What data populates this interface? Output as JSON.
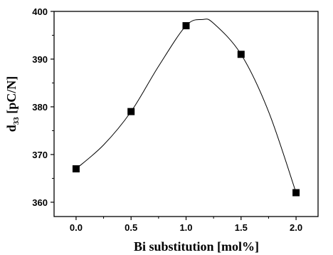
{
  "chart_data": {
    "type": "scatter",
    "title": "",
    "xlabel": "Bi substitution [mol%]",
    "ylabel": {
      "main": "d",
      "subscript": "33",
      "unit": " [pC/N]"
    },
    "xlim": [
      -0.2,
      2.2
    ],
    "ylim": [
      357,
      400
    ],
    "x_ticks": [
      0.0,
      0.5,
      1.0,
      1.5,
      2.0
    ],
    "x_tick_labels": [
      "0.0",
      "0.5",
      "1.0",
      "1.5",
      "2.0"
    ],
    "y_ticks": [
      360,
      370,
      380,
      390,
      400
    ],
    "y_tick_labels": [
      "360",
      "370",
      "380",
      "390",
      "400"
    ],
    "grid": false,
    "legend": "none",
    "series": [
      {
        "x": [
          0.0,
          0.5,
          1.0,
          1.5,
          2.0
        ],
        "y": [
          367,
          379,
          397,
          391,
          362
        ],
        "marker": "square",
        "color": "#000000"
      }
    ],
    "fit_curve": {
      "style": "smooth",
      "color": "#000000",
      "x": [
        0.0,
        0.25,
        0.5,
        0.75,
        1.0,
        1.15,
        1.25,
        1.5,
        1.75,
        2.0
      ],
      "y": [
        367,
        372,
        379,
        388.5,
        397,
        398.3,
        397.5,
        391,
        379,
        362
      ]
    }
  }
}
